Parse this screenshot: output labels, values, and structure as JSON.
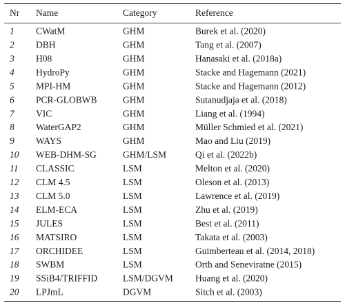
{
  "table": {
    "header": [
      "Nr",
      "Name",
      "Category",
      "Reference"
    ],
    "rows": [
      [
        "1",
        "CWatM",
        "GHM",
        "Burek et al. (2020)"
      ],
      [
        "2",
        "DBH",
        "GHM",
        "Tang et al. (2007)"
      ],
      [
        "3",
        "H08",
        "GHM",
        "Hanasaki et al. (2018a)"
      ],
      [
        "4",
        "HydroPy",
        "GHM",
        "Stacke and Hagemann (2021)"
      ],
      [
        "5",
        "MPI-HM",
        "GHM",
        "Stacke and Hagemann (2012)"
      ],
      [
        "6",
        "PCR-GLOBWB",
        "GHM",
        "Sutanudjaja et al. (2018)"
      ],
      [
        "7",
        "VIC",
        "GHM",
        "Liang et al. (1994)"
      ],
      [
        "8",
        "WaterGAP2",
        "GHM",
        "Müller Schmied et al. (2021)"
      ],
      [
        "9",
        "WAYS",
        "GHM",
        "Mao and Liu (2019)"
      ],
      [
        "10",
        "WEB-DHM-SG",
        "GHM/LSM",
        "Qi et al. (2022b)"
      ],
      [
        "11",
        "CLASSIC",
        "LSM",
        "Melton et al. (2020)"
      ],
      [
        "12",
        "CLM 4.5",
        "LSM",
        "Oleson et al. (2013)"
      ],
      [
        "13",
        "CLM 5.0",
        "LSM",
        "Lawrence et al. (2019)"
      ],
      [
        "14",
        "ELM-ECA",
        "LSM",
        "Zhu et al. (2019)"
      ],
      [
        "15",
        "JULES",
        "LSM",
        "Best et al. (2011)"
      ],
      [
        "16",
        "MATSIRO",
        "LSM",
        "Takata et al. (2003)"
      ],
      [
        "17",
        "ORCHIDEE",
        "LSM",
        "Guimberteau et al. (2014, 2018)"
      ],
      [
        "18",
        "SWBM",
        "LSM",
        "Orth and Seneviratne (2015)"
      ],
      [
        "19",
        "SSiB4/TRIFFID",
        "LSM/DGVM",
        "Huang et al. (2020)"
      ],
      [
        "20",
        "LPJmL",
        "DGVM",
        "Sitch et al. (2003)"
      ]
    ]
  }
}
